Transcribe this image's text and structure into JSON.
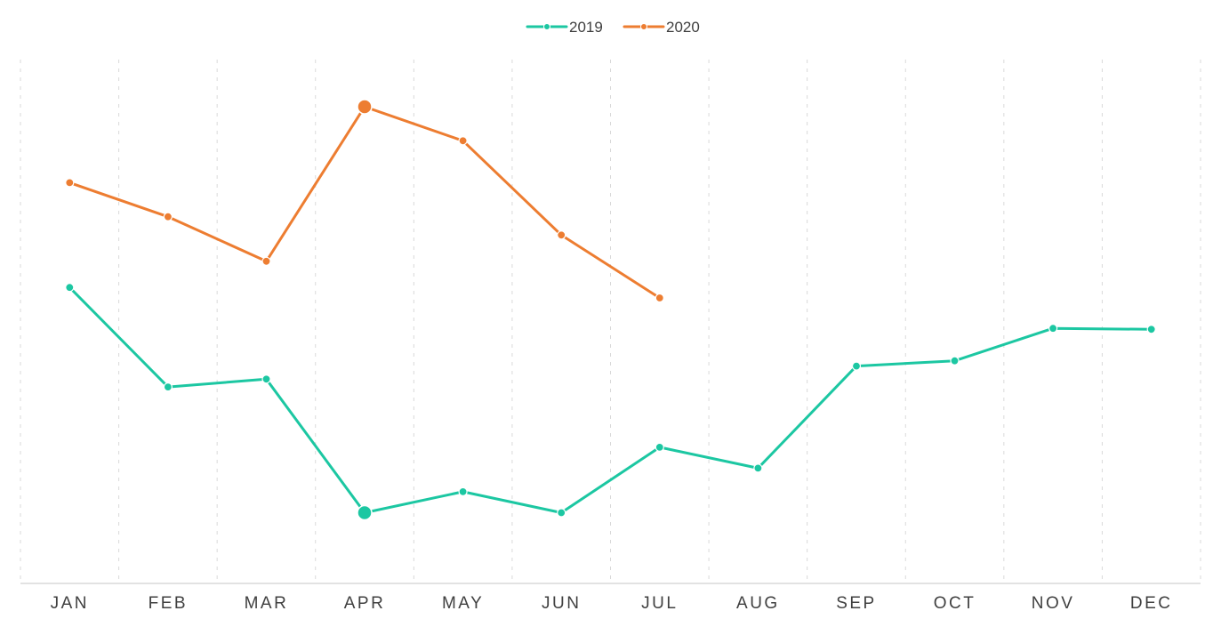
{
  "chart_data": {
    "type": "line",
    "title": "",
    "xlabel": "",
    "ylabel": "",
    "categories": [
      "JAN",
      "FEB",
      "MAR",
      "APR",
      "MAY",
      "JUN",
      "JUL",
      "AUG",
      "SEP",
      "OCT",
      "NOV",
      "DEC"
    ],
    "ylim": [
      0,
      100
    ],
    "grid": {
      "vertical": true,
      "horizontal": false,
      "style": "dashed"
    },
    "legend_position": "top-center",
    "series": [
      {
        "name": "2019",
        "color": "#1cc7a2",
        "marker": "circle",
        "highlight_index": 3,
        "values": [
          56.5,
          37.5,
          39,
          13.5,
          17.5,
          13.5,
          26,
          22,
          41.5,
          42.5,
          48.7,
          48.5
        ]
      },
      {
        "name": "2020",
        "color": "#ed7d31",
        "marker": "circle",
        "highlight_index": 3,
        "values": [
          76.5,
          70,
          61.5,
          91,
          84.5,
          66.5,
          54.5,
          null,
          null,
          null,
          null,
          null
        ]
      }
    ]
  }
}
